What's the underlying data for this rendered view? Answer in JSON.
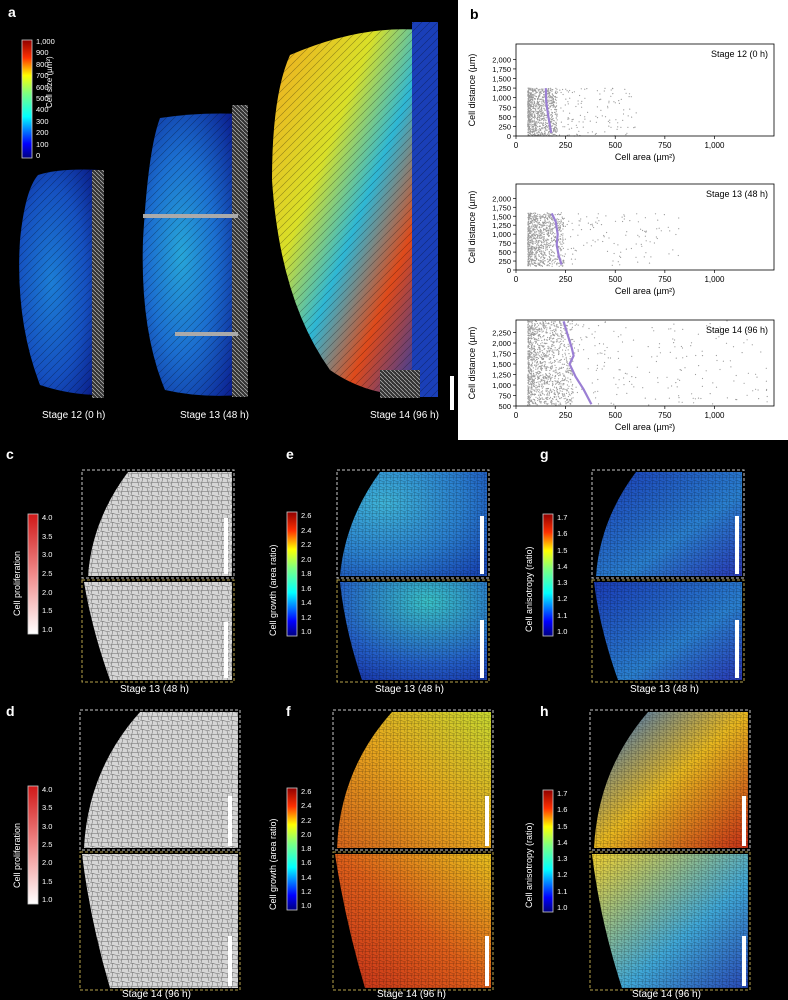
{
  "panel_labels": {
    "a": "a",
    "b": "b",
    "c": "c",
    "d": "d",
    "e": "e",
    "f": "f",
    "g": "g",
    "h": "h"
  },
  "panel_a": {
    "colorbar_title": "Cell size (µm²)",
    "colorbar_ticks": [
      "1,000",
      "900",
      "800",
      "700",
      "600",
      "500",
      "400",
      "300",
      "200",
      "100",
      "0"
    ],
    "captions": [
      "Stage 12 (0 h)",
      "Stage 13 (48 h)",
      "Stage 14 (96 h)"
    ]
  },
  "panel_c": {
    "colorbar_title": "Cell proliferation",
    "colorbar_ticks": [
      "4.0",
      "3.5",
      "3.0",
      "2.5",
      "2.0",
      "1.5",
      "1.0"
    ],
    "caption": "Stage 13 (48 h)"
  },
  "panel_d": {
    "colorbar_title": "Cell proliferation",
    "colorbar_ticks": [
      "4.0",
      "3.5",
      "3.0",
      "2.5",
      "2.0",
      "1.5",
      "1.0"
    ],
    "caption": "Stage 14 (96 h)"
  },
  "panel_e": {
    "colorbar_title": "Cell growth (area ratio)",
    "colorbar_ticks": [
      "2.6",
      "2.4",
      "2.2",
      "2.0",
      "1.8",
      "1.6",
      "1.4",
      "1.2",
      "1.0"
    ],
    "caption": "Stage 13 (48 h)"
  },
  "panel_f": {
    "colorbar_title": "Cell growth (area ratio)",
    "colorbar_ticks": [
      "2.6",
      "2.4",
      "2.2",
      "2.0",
      "1.8",
      "1.6",
      "1.4",
      "1.2",
      "1.0"
    ],
    "caption": "Stage 14 (96 h)"
  },
  "panel_g": {
    "colorbar_title": "Cell anisotropy (ratio)",
    "colorbar_ticks": [
      "1.7",
      "1.6",
      "1.5",
      "1.4",
      "1.3",
      "1.2",
      "1.1",
      "1.0"
    ],
    "caption": "Stage 13 (48 h)"
  },
  "panel_h": {
    "colorbar_title": "Cell anisotropy (ratio)",
    "colorbar_ticks": [
      "1.7",
      "1.6",
      "1.5",
      "1.4",
      "1.3",
      "1.2",
      "1.1",
      "1.0"
    ],
    "caption": "Stage 14 (96 h)"
  },
  "colors": {
    "jet": [
      "#00007f",
      "#0000ff",
      "#007fff",
      "#00ffff",
      "#7fff7f",
      "#ffff00",
      "#ff7f00",
      "#ff0000",
      "#7f0000"
    ],
    "reds": [
      "#ffffff",
      "#f6b9b9",
      "#e86a6a",
      "#d42020"
    ],
    "scatter_point": "#9a9a9a",
    "fit_line": "#9b7fd4"
  },
  "chart_data": [
    {
      "type": "scatter",
      "title": "Stage 12 (0 h)",
      "xlabel": "Cell area (µm²)",
      "ylabel": "Cell distance (µm)",
      "xlim": [
        0,
        1300
      ],
      "ylim": [
        0,
        2400
      ],
      "xticks": [
        0,
        250,
        500,
        750,
        1000
      ],
      "xtick_labels": [
        "0",
        "250",
        "500",
        "750",
        "1,000"
      ],
      "yticks": [
        0,
        250,
        500,
        750,
        1000,
        1250,
        1500,
        1750,
        2000
      ],
      "ytick_labels": [
        "0",
        "250",
        "500",
        "750",
        "1,000",
        "1,250",
        "1,500",
        "1,750",
        "2,000"
      ],
      "point_cloud": {
        "x_min": 60,
        "x_mode": 130,
        "x_max": 620,
        "y_min": 0,
        "y_max": 1250
      },
      "fit_line": {
        "x": [
          150,
          152,
          160,
          170,
          178
        ],
        "y": [
          1250,
          900,
          600,
          300,
          80
        ]
      }
    },
    {
      "type": "scatter",
      "title": "Stage 13 (48 h)",
      "xlabel": "Cell area (µm²)",
      "ylabel": "Cell distance (µm)",
      "xlim": [
        0,
        1300
      ],
      "ylim": [
        0,
        2400
      ],
      "xticks": [
        0,
        250,
        500,
        750,
        1000
      ],
      "xtick_labels": [
        "0",
        "250",
        "500",
        "750",
        "1,000"
      ],
      "yticks": [
        0,
        250,
        500,
        750,
        1000,
        1250,
        1500,
        1750,
        2000
      ],
      "ytick_labels": [
        "0",
        "250",
        "500",
        "750",
        "1,000",
        "1,250",
        "1,500",
        "1,750",
        "2,000"
      ],
      "point_cloud": {
        "x_min": 60,
        "x_mode": 150,
        "x_max": 820,
        "y_min": 100,
        "y_max": 1600
      },
      "fit_line": {
        "x": [
          180,
          200,
          210,
          205,
          215,
          230
        ],
        "y": [
          1580,
          1350,
          1000,
          700,
          400,
          150
        ]
      }
    },
    {
      "type": "scatter",
      "title": "Stage 14 (96 h)",
      "xlabel": "Cell area (µm²)",
      "ylabel": "Cell distance (µm)",
      "xlim": [
        0,
        1300
      ],
      "ylim": [
        500,
        2550
      ],
      "xticks": [
        0,
        250,
        500,
        750,
        1000
      ],
      "xtick_labels": [
        "0",
        "250",
        "500",
        "750",
        "1,000"
      ],
      "yticks": [
        500,
        1000,
        1500,
        2000
      ],
      "ytick_labels": [
        "500",
        "1,000",
        "1,500",
        "2,000"
      ],
      "extra_yticks": [
        750,
        1250,
        1750,
        2250
      ],
      "extra_ytick_labels": [
        "750",
        "1,250",
        "1,750",
        "2,250"
      ],
      "point_cloud": {
        "x_min": 60,
        "x_mode": 180,
        "x_max": 1280,
        "y_min": 520,
        "y_max": 2530
      },
      "fit_line": {
        "x": [
          240,
          260,
          280,
          290,
          270,
          300,
          340,
          380
        ],
        "y": [
          2520,
          2200,
          1900,
          1700,
          1500,
          1200,
          900,
          540
        ]
      }
    }
  ]
}
